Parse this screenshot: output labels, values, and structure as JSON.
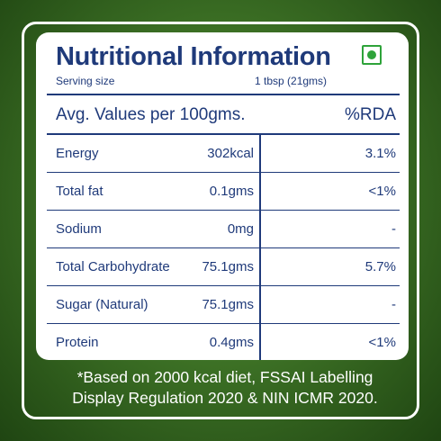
{
  "panel": {
    "title": "Nutritional Information",
    "serving_label": "Serving size",
    "serving_value": "1 tbsp (21gms)"
  },
  "table": {
    "header_left": "Avg. Values per 100gms.",
    "header_right": "%RDA",
    "rows": [
      {
        "name": "Energy",
        "value": "302kcal",
        "rda": "3.1%"
      },
      {
        "name": "Total fat",
        "value": "0.1gms",
        "rda": "<1%"
      },
      {
        "name": "Sodium",
        "value": "0mg",
        "rda": "-"
      },
      {
        "name": "Total Carbohydrate",
        "value": "75.1gms",
        "rda": "5.7%"
      },
      {
        "name": "Sugar (Natural)",
        "value": "75.1gms",
        "rda": "-"
      },
      {
        "name": "Protein",
        "value": "0.4gms",
        "rda": "<1%"
      }
    ]
  },
  "footnote": {
    "line1": "*Based on 2000 kcal diet, FSSAI Labelling",
    "line2": "Display Regulation 2020 & NIN ICMR 2020."
  },
  "icons": {
    "veg_mark": "vegetarian-mark-icon"
  },
  "colors": {
    "text_blue": "#1f3a7a",
    "veg_green": "#2ea33a",
    "background_green": "#3e7326"
  }
}
